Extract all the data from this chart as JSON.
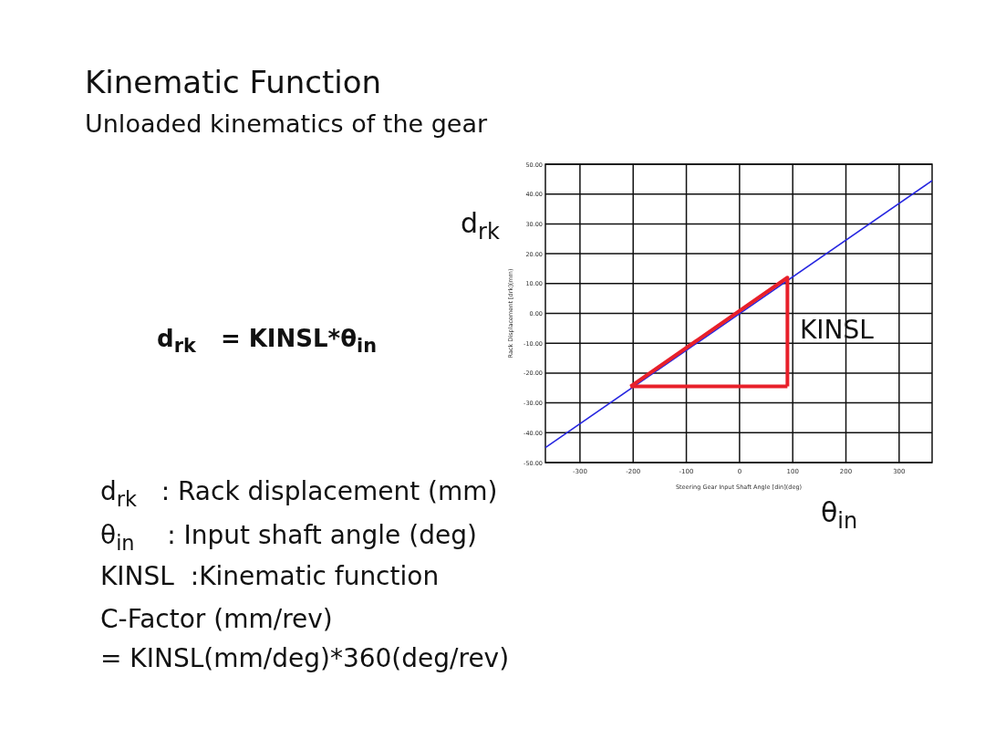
{
  "chart_data": {
    "type": "line",
    "title": "Kinematic Function",
    "subtitle": "Unloaded kinematics of the gear",
    "xlabel": "Steering Gear Input Shaft Angle [din](deg)",
    "ylabel": "Rack Displacement [drk](mm)",
    "xlim": [
      -365,
      362
    ],
    "xticks": [
      -300,
      -200,
      -100,
      0,
      100,
      200,
      300
    ],
    "ylim": [
      -50,
      50
    ],
    "yticks": [
      {
        "value": -50,
        "label": "-50.00"
      },
      {
        "value": -40,
        "label": "-40.00"
      },
      {
        "value": -30,
        "label": "-30.00"
      },
      {
        "value": -20,
        "label": "-20.00"
      },
      {
        "value": -10,
        "label": "-10.00"
      },
      {
        "value": 0,
        "label": "0.00"
      },
      {
        "value": 10,
        "label": "10.00"
      },
      {
        "value": 20,
        "label": "20.00"
      },
      {
        "value": 30,
        "label": "30.00"
      },
      {
        "value": 40,
        "label": "40.00"
      },
      {
        "value": 50,
        "label": "50.00"
      }
    ],
    "grid": true,
    "marker": "none",
    "line_style": "solid",
    "series": [
      {
        "color": "#2626e0",
        "x": [
          -365,
          362
        ],
        "values": [
          -45,
          44.5
        ]
      },
      {
        "color": "#e8202a",
        "x": [
          -205,
          90,
          90
        ],
        "values": [
          -24.5,
          12,
          -24.5
        ]
      },
      {
        "color": "#e8202a",
        "x": [
          -205,
          90
        ],
        "values": [
          -24.5,
          -24.5
        ]
      }
    ],
    "annotations": [
      "d$_{rk}$  = KINSL*θ$_{in}$",
      "d$_{rk}$  : Rack displacement (mm)",
      "θ$_{in}$   : Input shaft angle (deg)",
      "KINSL  :Kinematic function",
      "C-Factor (mm/rev)",
      "= KINSL(mm/deg)*360(deg/rev)",
      "d$_{rk}$",
      "θ$_{in}$",
      "KINSL"
    ]
  }
}
